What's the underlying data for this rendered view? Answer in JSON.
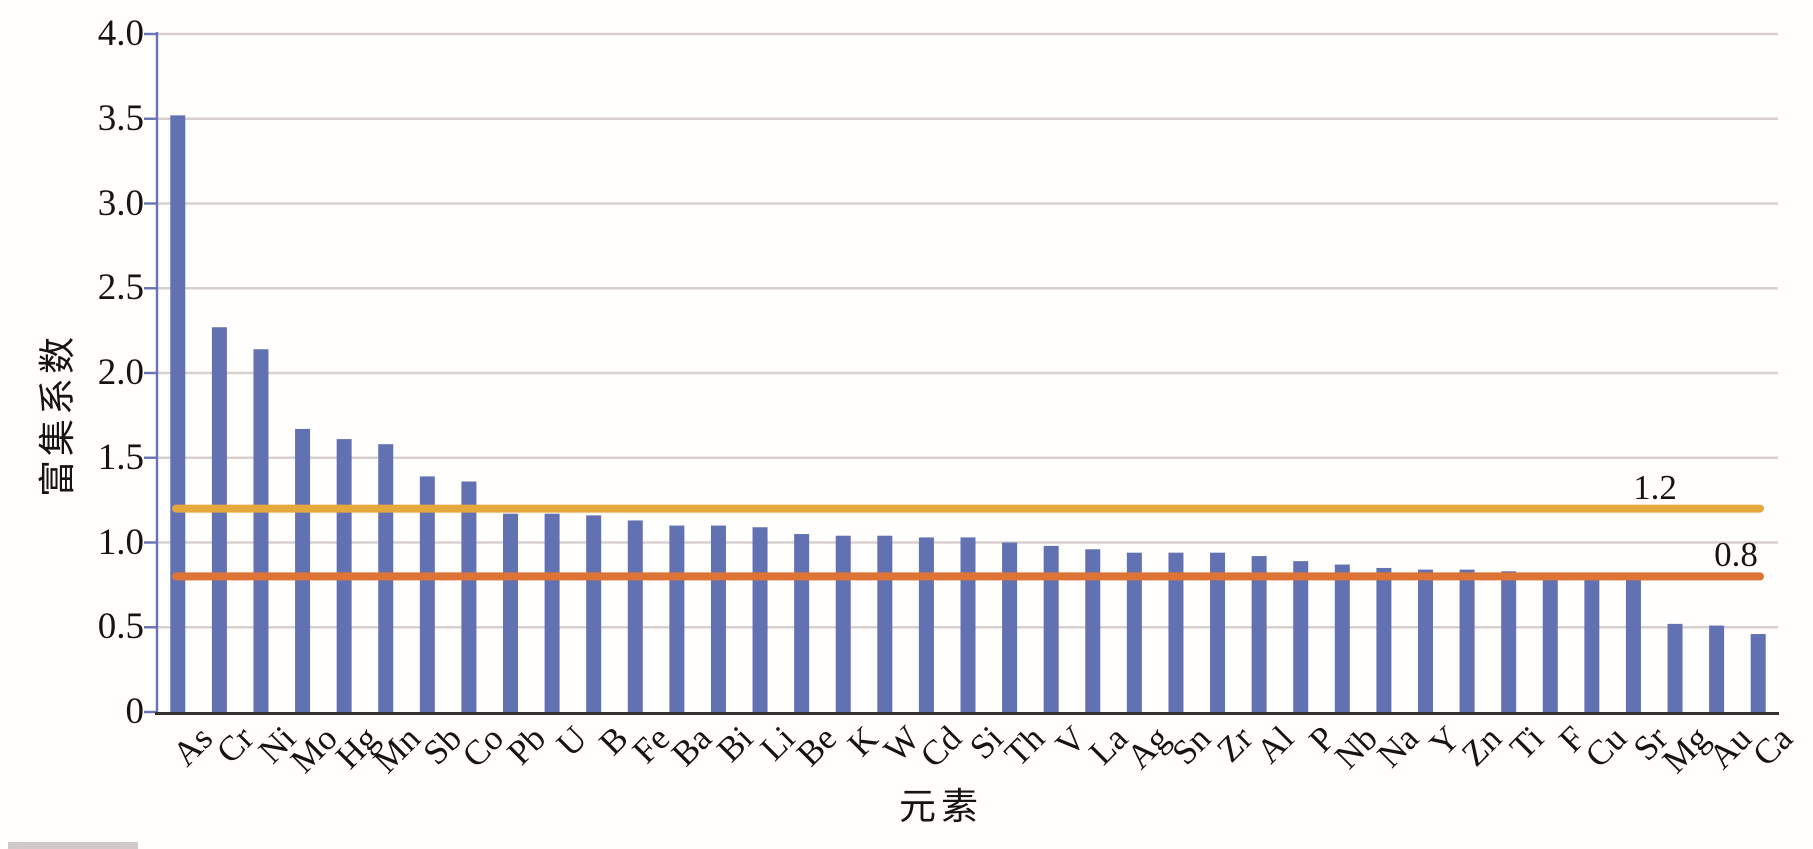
{
  "chart_data": {
    "type": "bar",
    "title": "",
    "xlabel": "元素",
    "ylabel": "富集系数",
    "categories": [
      "As",
      "Cr",
      "Ni",
      "Mo",
      "Hg",
      "Mn",
      "Sb",
      "Co",
      "Pb",
      "U",
      "B",
      "Fe",
      "Ba",
      "Bi",
      "Li",
      "Be",
      "K",
      "W",
      "Cd",
      "Si",
      "Th",
      "V",
      "La",
      "Ag",
      "Sn",
      "Zr",
      "Al",
      "P",
      "Nb",
      "Na",
      "Y",
      "Zn",
      "Ti",
      "F",
      "Cu",
      "Sr",
      "Mg",
      "Au",
      "Ca"
    ],
    "values": [
      3.52,
      2.27,
      2.14,
      1.67,
      1.61,
      1.58,
      1.39,
      1.36,
      1.17,
      1.17,
      1.16,
      1.13,
      1.1,
      1.1,
      1.09,
      1.05,
      1.04,
      1.04,
      1.03,
      1.03,
      1.0,
      0.98,
      0.96,
      0.94,
      0.94,
      0.94,
      0.92,
      0.89,
      0.87,
      0.85,
      0.84,
      0.84,
      0.83,
      0.8,
      0.79,
      0.79,
      0.52,
      0.51,
      0.46
    ],
    "ylim": [
      0,
      4
    ],
    "ytick_step": 0.5,
    "ytick_labels": [
      "0",
      "0.5",
      "1.0",
      "1.5",
      "2.0",
      "2.5",
      "3.0",
      "3.5",
      "4.0"
    ],
    "grid": "horizontal",
    "legend": "none",
    "ref_lines": [
      {
        "value": 1.2,
        "label": "1.2",
        "color": "#e5a83d"
      },
      {
        "value": 0.8,
        "label": "0.8",
        "color": "#dd7334"
      }
    ],
    "colors": {
      "bar": "#6271b2",
      "gridline": "#d8d0ce",
      "y_axis": "#6674b4",
      "x_axis": "#33302d",
      "text": "#161412"
    }
  }
}
